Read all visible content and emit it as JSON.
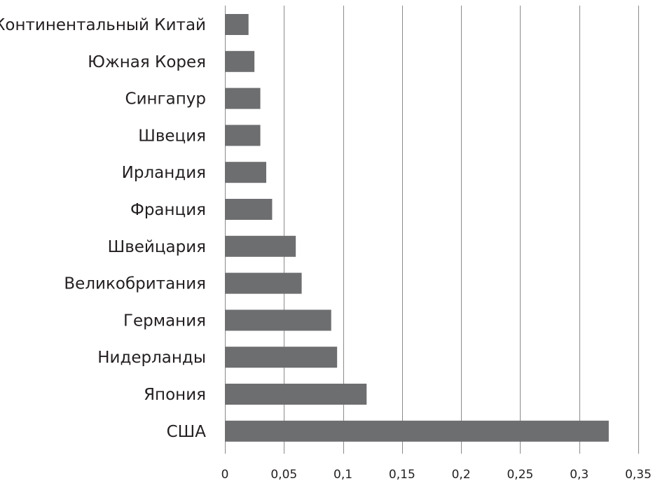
{
  "chart_data": {
    "type": "bar",
    "orientation": "horizontal",
    "categories": [
      "Континентальный Китай",
      "Южная Корея",
      "Сингапур",
      "Швеция",
      "Ирландия",
      "Франция",
      "Швейцария",
      "Великобритания",
      "Германия",
      "Нидерланды",
      "Япония",
      "США"
    ],
    "values": [
      0.02,
      0.025,
      0.03,
      0.03,
      0.035,
      0.04,
      0.06,
      0.065,
      0.09,
      0.095,
      0.12,
      0.325
    ],
    "xlim": [
      0,
      0.35
    ],
    "xticks": [
      0,
      0.05,
      0.1,
      0.15,
      0.2,
      0.25,
      0.3,
      0.35
    ],
    "xtick_labels": [
      "0",
      "0,05",
      "0,1",
      "0,15",
      "0,2",
      "0,25",
      "0,3",
      "0,35"
    ],
    "title": "",
    "xlabel": "",
    "ylabel": "",
    "grid": "vertical",
    "legend": "none",
    "bar_color": "#6d6e70",
    "grid_color": "#8a8a8a",
    "text_color": "#231f20"
  }
}
